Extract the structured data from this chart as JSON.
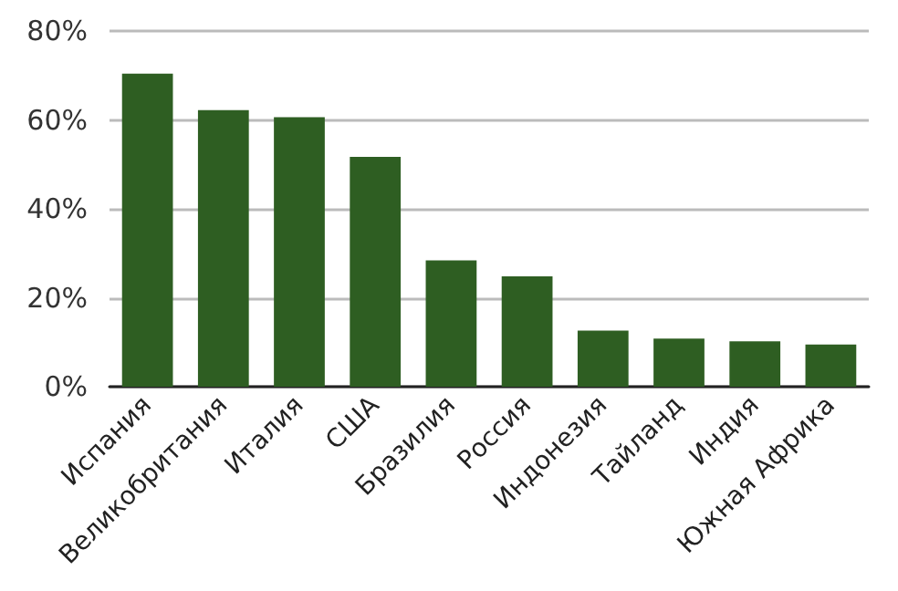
{
  "chart_data": {
    "type": "bar",
    "categories": [
      "Испания",
      "Великобритания",
      "Италия",
      "США",
      "Бразилия",
      "Россия",
      "Индонезия",
      "Тайланд",
      "Индия",
      "Южная Африка"
    ],
    "values": [
      70.4,
      62.2,
      60.6,
      51.7,
      28.4,
      24.8,
      12.6,
      10.8,
      10.2,
      9.5
    ],
    "color": "#2e5e22",
    "ylim": [
      0,
      80
    ],
    "yticks": [
      {
        "value": 0,
        "label": "0%"
      },
      {
        "value": 20,
        "label": "20%"
      },
      {
        "value": 40,
        "label": "40%"
      },
      {
        "value": 60,
        "label": "60%"
      },
      {
        "value": 80,
        "label": "80%"
      }
    ],
    "grid": "y"
  }
}
